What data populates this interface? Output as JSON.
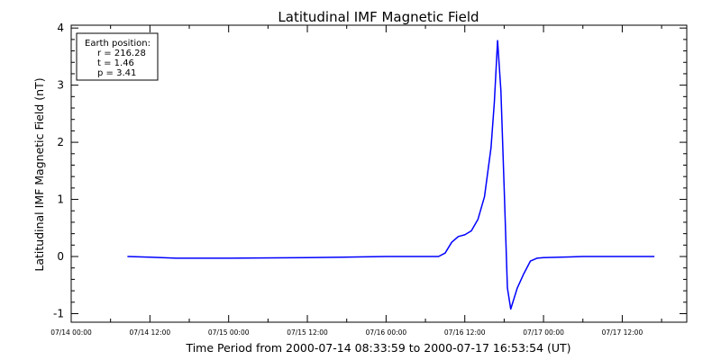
{
  "chart_data": {
    "type": "line",
    "title": "Latitudinal IMF Magnetic Field",
    "xlabel": "Time Period from 2000-07-14 08:33:59 to 2000-07-17 16:53:54 (UT)",
    "ylabel": "Latitudinal IMF Magnetic Field (nT)",
    "ylim": [
      -1.15,
      4.05
    ],
    "yticks": [
      -1,
      0,
      1,
      2,
      3,
      4
    ],
    "xlim": [
      "2000-07-14 00:00",
      "2000-07-17 21:50"
    ],
    "xtick_labels": [
      "07/14 00:00",
      "07/14 12:00",
      "07/15 00:00",
      "07/15 12:00",
      "07/16 00:00",
      "07/16 12:00",
      "07/17 00:00",
      "07/17 12:00"
    ],
    "xtick_values": [
      "2000-07-14 00:00",
      "2000-07-14 12:00",
      "2000-07-15 00:00",
      "2000-07-15 12:00",
      "2000-07-16 00:00",
      "2000-07-16 12:00",
      "2000-07-17 00:00",
      "2000-07-17 12:00"
    ],
    "grid": false,
    "line_color": "#0000ff",
    "legend_box": {
      "placement": "top-left",
      "heading": "Earth position:",
      "lines": [
        "r = 216.28",
        "t = 1.46",
        "p = 3.41"
      ]
    },
    "series": [
      {
        "x": [
          "2000-07-14 08:34",
          "2000-07-14 12:00",
          "2000-07-14 16:00",
          "2000-07-15 00:00",
          "2000-07-15 12:00",
          "2000-07-16 00:00",
          "2000-07-16 06:00",
          "2000-07-16 08:00",
          "2000-07-16 09:00",
          "2000-07-16 10:00",
          "2000-07-16 11:00",
          "2000-07-16 12:00",
          "2000-07-16 13:00",
          "2000-07-16 14:00",
          "2000-07-16 15:00",
          "2000-07-16 16:00",
          "2000-07-16 16:30",
          "2000-07-16 17:00",
          "2000-07-16 17:30",
          "2000-07-16 18:00",
          "2000-07-16 18:30",
          "2000-07-16 19:00",
          "2000-07-16 20:00",
          "2000-07-16 21:00",
          "2000-07-16 22:00",
          "2000-07-16 23:00",
          "2000-07-17 00:00",
          "2000-07-17 06:00",
          "2000-07-17 12:00",
          "2000-07-17 16:54"
        ],
        "values": [
          0.0,
          -0.01,
          -0.03,
          -0.03,
          -0.02,
          0.0,
          0.0,
          0.0,
          0.06,
          0.25,
          0.35,
          0.38,
          0.45,
          0.65,
          1.05,
          1.9,
          2.7,
          3.78,
          2.9,
          1.2,
          -0.55,
          -0.92,
          -0.55,
          -0.3,
          -0.08,
          -0.03,
          -0.02,
          0.0,
          0.0,
          0.0
        ]
      }
    ]
  }
}
